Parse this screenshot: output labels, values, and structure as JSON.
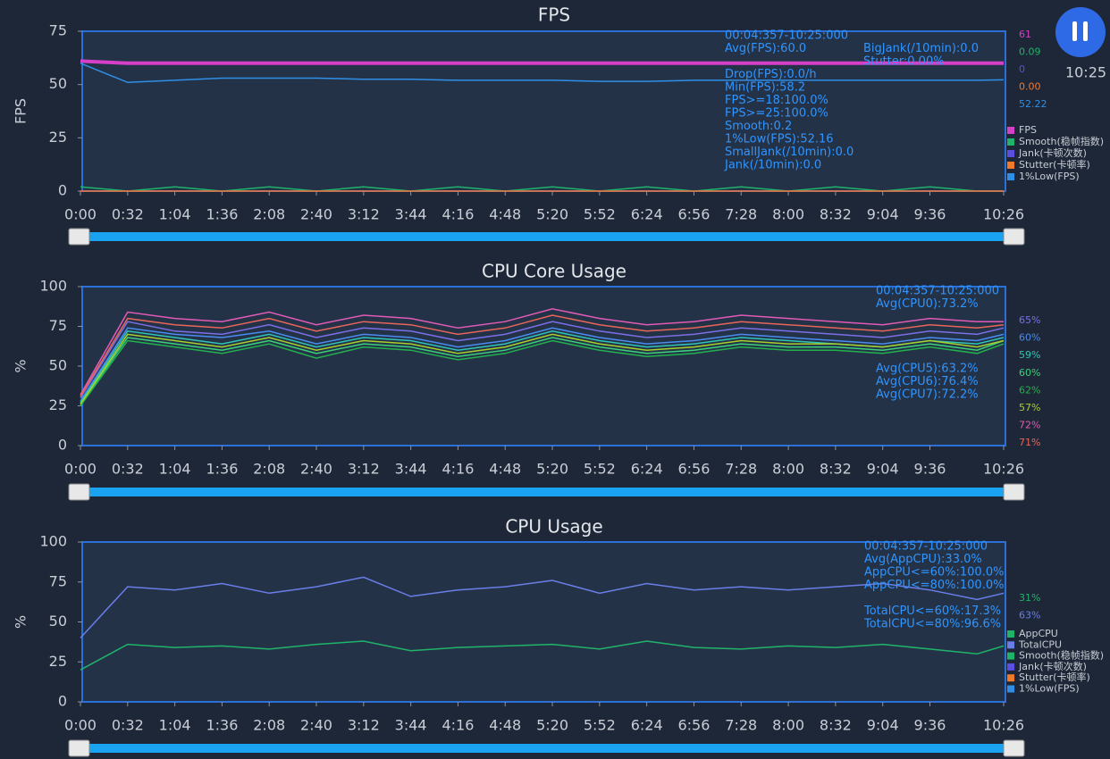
{
  "clock": "10:25",
  "chart_data": [
    {
      "type": "line",
      "title": "FPS",
      "y_label": "FPS",
      "x": [
        0,
        32,
        64,
        96,
        128,
        160,
        192,
        224,
        256,
        288,
        320,
        352,
        384,
        416,
        448,
        480,
        512,
        544,
        576,
        608,
        626
      ],
      "xlim": [
        0,
        626
      ],
      "xticks": [
        {
          "value": 0,
          "label": "0:00"
        },
        {
          "value": 32,
          "label": "0:32"
        },
        {
          "value": 64,
          "label": "1:04"
        },
        {
          "value": 96,
          "label": "1:36"
        },
        {
          "value": 128,
          "label": "2:08"
        },
        {
          "value": 160,
          "label": "2:40"
        },
        {
          "value": 192,
          "label": "3:12"
        },
        {
          "value": 224,
          "label": "3:44"
        },
        {
          "value": 256,
          "label": "4:16"
        },
        {
          "value": 288,
          "label": "4:48"
        },
        {
          "value": 320,
          "label": "5:20"
        },
        {
          "value": 352,
          "label": "5:52"
        },
        {
          "value": 384,
          "label": "6:24"
        },
        {
          "value": 416,
          "label": "6:56"
        },
        {
          "value": 448,
          "label": "7:28"
        },
        {
          "value": 480,
          "label": "8:00"
        },
        {
          "value": 512,
          "label": "8:32"
        },
        {
          "value": 544,
          "label": "9:04"
        },
        {
          "value": 576,
          "label": "9:36"
        },
        {
          "value": 626,
          "label": "10:26"
        }
      ],
      "ylim": [
        0,
        75
      ],
      "yticks": [
        0,
        25,
        50,
        75
      ],
      "series": [
        {
          "name": "FPS",
          "color": "#d63fc7",
          "current": 61,
          "values": [
            61,
            60,
            60,
            60,
            60,
            60,
            60,
            60,
            60,
            60,
            60,
            60,
            60,
            60,
            60,
            60,
            60,
            60,
            60,
            60,
            60
          ]
        },
        {
          "name": "Smooth(稳帧指数)",
          "color": "#1fb46a",
          "current": {
            "value": 0.09,
            "label": "0.09"
          },
          "values": [
            2,
            0,
            2,
            0,
            2,
            0,
            2,
            0,
            2,
            0,
            2,
            0,
            2,
            0,
            2,
            0,
            2,
            0,
            2,
            0,
            0
          ]
        },
        {
          "name": "Jank(卡顿次数)",
          "color": "#5a4fe0",
          "current": 0,
          "values": [
            0,
            0,
            0,
            0,
            0,
            0,
            0,
            0,
            0,
            0,
            0,
            0,
            0,
            0,
            0,
            0,
            0,
            0,
            0,
            0,
            0
          ]
        },
        {
          "name": "Stutter(卡顿率)",
          "color": "#f07a2a",
          "current": {
            "value": 0,
            "label": "0.00"
          },
          "values": [
            0,
            0,
            0,
            0,
            0,
            0,
            0,
            0,
            0,
            0,
            0,
            0,
            0,
            0,
            0,
            0,
            0,
            0,
            0,
            0,
            0
          ]
        },
        {
          "name": "1%Low(FPS)",
          "color": "#2f8fe6",
          "current": 52.22,
          "values": [
            60,
            51,
            52,
            53,
            53,
            53,
            52.5,
            52.5,
            52,
            52,
            52,
            51.5,
            51.5,
            52,
            52,
            52,
            52,
            52,
            52,
            52,
            52.2
          ]
        }
      ],
      "stats": [
        "00:04:357-10:25:000",
        "Avg(FPS):60.0",
        "",
        "Drop(FPS):0.0/h",
        "Min(FPS):58.2",
        "FPS>=18:100.0%",
        "FPS>=25:100.0%",
        "Smooth:0.2",
        "1%Low(FPS):52.16",
        "SmallJank(/10min):0.0",
        "Jank(/10min):0.0"
      ],
      "stats_right": [
        "BigJank(/10min):0.0",
        "Stutter:0.00%"
      ]
    },
    {
      "type": "line",
      "title": "CPU Core Usage",
      "y_label": "%",
      "x": [
        0,
        32,
        64,
        96,
        128,
        160,
        192,
        224,
        256,
        288,
        320,
        352,
        384,
        416,
        448,
        480,
        512,
        544,
        576,
        608,
        626
      ],
      "xlim": [
        0,
        626
      ],
      "xticks": [
        {
          "value": 0,
          "label": "0:00"
        },
        {
          "value": 32,
          "label": "0:32"
        },
        {
          "value": 64,
          "label": "1:04"
        },
        {
          "value": 96,
          "label": "1:36"
        },
        {
          "value": 128,
          "label": "2:08"
        },
        {
          "value": 160,
          "label": "2:40"
        },
        {
          "value": 192,
          "label": "3:12"
        },
        {
          "value": 224,
          "label": "3:44"
        },
        {
          "value": 256,
          "label": "4:16"
        },
        {
          "value": 288,
          "label": "4:48"
        },
        {
          "value": 320,
          "label": "5:20"
        },
        {
          "value": 352,
          "label": "5:52"
        },
        {
          "value": 384,
          "label": "6:24"
        },
        {
          "value": 416,
          "label": "6:56"
        },
        {
          "value": 448,
          "label": "7:28"
        },
        {
          "value": 480,
          "label": "8:00"
        },
        {
          "value": 512,
          "label": "8:32"
        },
        {
          "value": 544,
          "label": "9:04"
        },
        {
          "value": 576,
          "label": "9:36"
        },
        {
          "value": 626,
          "label": "10:26"
        }
      ],
      "ylim": [
        0,
        100
      ],
      "yticks": [
        0,
        25,
        50,
        75,
        100
      ],
      "series": [
        {
          "color": "#7b6fe6",
          "current": {
            "value": 65,
            "label": "65%"
          },
          "values": [
            30,
            78,
            72,
            70,
            76,
            68,
            74,
            72,
            66,
            70,
            78,
            72,
            68,
            70,
            74,
            72,
            70,
            68,
            72,
            70,
            74
          ]
        },
        {
          "color": "#4a8cf0",
          "current": {
            "value": 60,
            "label": "60%"
          },
          "values": [
            28,
            74,
            70,
            68,
            72,
            64,
            70,
            68,
            62,
            66,
            74,
            68,
            64,
            66,
            70,
            68,
            66,
            64,
            68,
            66,
            70
          ]
        },
        {
          "color": "#2ec4b6",
          "current": {
            "value": 59,
            "label": "59%"
          },
          "values": [
            27,
            72,
            68,
            64,
            70,
            62,
            68,
            66,
            60,
            64,
            72,
            66,
            62,
            64,
            68,
            66,
            64,
            62,
            66,
            64,
            68
          ]
        },
        {
          "color": "#3ad17a",
          "current": {
            "value": 60,
            "label": "60%"
          },
          "values": [
            26,
            68,
            64,
            60,
            66,
            58,
            64,
            62,
            56,
            60,
            68,
            62,
            58,
            60,
            64,
            62,
            62,
            60,
            64,
            60,
            66
          ]
        },
        {
          "color": "#22b14c",
          "current": {
            "value": 62,
            "label": "62%"
          },
          "values": [
            25,
            66,
            62,
            58,
            64,
            55,
            62,
            60,
            54,
            58,
            66,
            60,
            56,
            58,
            62,
            60,
            60,
            58,
            62,
            58,
            64
          ]
        },
        {
          "color": "#a6d12a",
          "current": {
            "value": 57,
            "label": "57%"
          },
          "values": [
            26,
            70,
            66,
            62,
            68,
            60,
            66,
            64,
            58,
            62,
            70,
            64,
            60,
            62,
            66,
            64,
            64,
            62,
            66,
            62,
            66
          ]
        },
        {
          "color": "#e05bb5",
          "current": {
            "value": 72,
            "label": "72%"
          },
          "values": [
            32,
            84,
            80,
            78,
            84,
            76,
            82,
            80,
            74,
            78,
            86,
            80,
            76,
            78,
            82,
            80,
            78,
            76,
            80,
            78,
            78
          ]
        },
        {
          "color": "#e8655a",
          "current": {
            "value": 71,
            "label": "71%"
          },
          "values": [
            31,
            80,
            76,
            74,
            80,
            72,
            78,
            76,
            70,
            74,
            82,
            76,
            72,
            74,
            78,
            76,
            74,
            72,
            76,
            74,
            76
          ]
        }
      ],
      "stats": [
        "00:04:357-10:25:000",
        "Avg(CPU0):73.2%",
        "",
        "",
        "",
        "",
        "Avg(CPU5):63.2%",
        "Avg(CPU6):76.4%",
        "Avg(CPU7):72.2%"
      ]
    },
    {
      "type": "line",
      "title": "CPU Usage",
      "y_label": "%",
      "x": [
        0,
        32,
        64,
        96,
        128,
        160,
        192,
        224,
        256,
        288,
        320,
        352,
        384,
        416,
        448,
        480,
        512,
        544,
        576,
        608,
        626
      ],
      "xlim": [
        0,
        626
      ],
      "xticks": [
        {
          "value": 0,
          "label": "0:00"
        },
        {
          "value": 32,
          "label": "0:32"
        },
        {
          "value": 64,
          "label": "1:04"
        },
        {
          "value": 96,
          "label": "1:36"
        },
        {
          "value": 128,
          "label": "2:08"
        },
        {
          "value": 160,
          "label": "2:40"
        },
        {
          "value": 192,
          "label": "3:12"
        },
        {
          "value": 224,
          "label": "3:44"
        },
        {
          "value": 256,
          "label": "4:16"
        },
        {
          "value": 288,
          "label": "4:48"
        },
        {
          "value": 320,
          "label": "5:20"
        },
        {
          "value": 352,
          "label": "5:52"
        },
        {
          "value": 384,
          "label": "6:24"
        },
        {
          "value": 416,
          "label": "6:56"
        },
        {
          "value": 448,
          "label": "7:28"
        },
        {
          "value": 480,
          "label": "8:00"
        },
        {
          "value": 512,
          "label": "8:32"
        },
        {
          "value": 544,
          "label": "9:04"
        },
        {
          "value": 576,
          "label": "9:36"
        },
        {
          "value": 626,
          "label": "10:26"
        }
      ],
      "ylim": [
        0,
        100
      ],
      "yticks": [
        0,
        25,
        50,
        75,
        100
      ],
      "series": [
        {
          "name": "AppCPU",
          "color": "#1fb46a",
          "current": {
            "value": 31,
            "label": "31%"
          },
          "values": [
            20,
            36,
            34,
            35,
            33,
            36,
            38,
            32,
            34,
            35,
            36,
            33,
            38,
            34,
            33,
            35,
            34,
            36,
            33,
            30,
            35
          ]
        },
        {
          "name": "TotalCPU",
          "color": "#6a7ee8",
          "current": {
            "value": 63,
            "label": "63%"
          },
          "values": [
            40,
            72,
            70,
            74,
            68,
            72,
            78,
            66,
            70,
            72,
            76,
            68,
            74,
            70,
            72,
            70,
            72,
            74,
            70,
            64,
            68
          ]
        }
      ],
      "legend_extra": [
        {
          "name": "Smooth(稳帧指数)",
          "color": "#1fb46a"
        },
        {
          "name": "Jank(卡顿次数)",
          "color": "#5a4fe0"
        },
        {
          "name": "Stutter(卡顿率)",
          "color": "#f07a2a"
        },
        {
          "name": "1%Low(FPS)",
          "color": "#2f8fe6"
        }
      ],
      "stats": [
        "00:04:357-10:25:000",
        "Avg(AppCPU):33.0%",
        "AppCPU<=60%:100.0%",
        "AppCPU<=80%:100.0%",
        "",
        "TotalCPU<=60%:17.3%",
        "TotalCPU<=80%:96.6%"
      ]
    }
  ]
}
